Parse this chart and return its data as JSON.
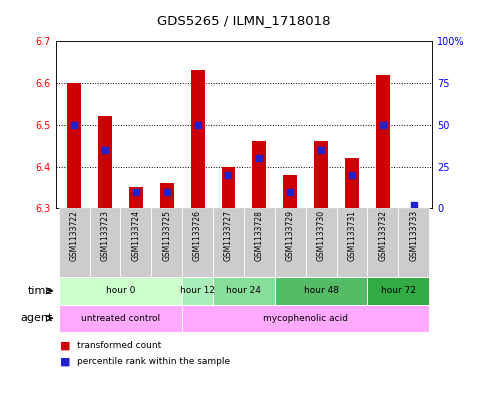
{
  "title": "GDS5265 / ILMN_1718018",
  "samples": [
    "GSM1133722",
    "GSM1133723",
    "GSM1133724",
    "GSM1133725",
    "GSM1133726",
    "GSM1133727",
    "GSM1133728",
    "GSM1133729",
    "GSM1133730",
    "GSM1133731",
    "GSM1133732",
    "GSM1133733"
  ],
  "transformed_count": [
    6.6,
    6.52,
    6.35,
    6.36,
    6.63,
    6.4,
    6.46,
    6.38,
    6.46,
    6.42,
    6.62,
    6.3
  ],
  "percentile_rank": [
    50,
    35,
    10,
    10,
    50,
    20,
    30,
    10,
    35,
    20,
    50,
    2
  ],
  "bar_base": 6.3,
  "ylim_left": [
    6.3,
    6.7
  ],
  "ylim_right": [
    0,
    100
  ],
  "yticks_left": [
    6.3,
    6.4,
    6.5,
    6.6,
    6.7
  ],
  "yticks_right": [
    0,
    25,
    50,
    75,
    100
  ],
  "bar_color_red": "#cc0000",
  "bar_color_blue": "#2222cc",
  "bg_plot": "#ffffff",
  "bg_sample_row": "#cccccc",
  "time_groups": [
    {
      "label": "hour 0",
      "start": 0,
      "end": 3,
      "color": "#ccffcc"
    },
    {
      "label": "hour 12",
      "start": 4,
      "end": 4,
      "color": "#aaeebb"
    },
    {
      "label": "hour 24",
      "start": 5,
      "end": 6,
      "color": "#88dd99"
    },
    {
      "label": "hour 48",
      "start": 7,
      "end": 9,
      "color": "#55bb66"
    },
    {
      "label": "hour 72",
      "start": 10,
      "end": 11,
      "color": "#33aa44"
    }
  ],
  "agent_groups": [
    {
      "label": "untreated control",
      "start": 0,
      "end": 3,
      "color": "#ffaaff"
    },
    {
      "label": "mycophenolic acid",
      "start": 4,
      "end": 11,
      "color": "#ffaaff"
    }
  ],
  "legend_red": "transformed count",
  "legend_blue": "percentile rank within the sample",
  "time_label": "time",
  "agent_label": "agent",
  "bar_width": 0.45,
  "percentile_marker_size": 18
}
